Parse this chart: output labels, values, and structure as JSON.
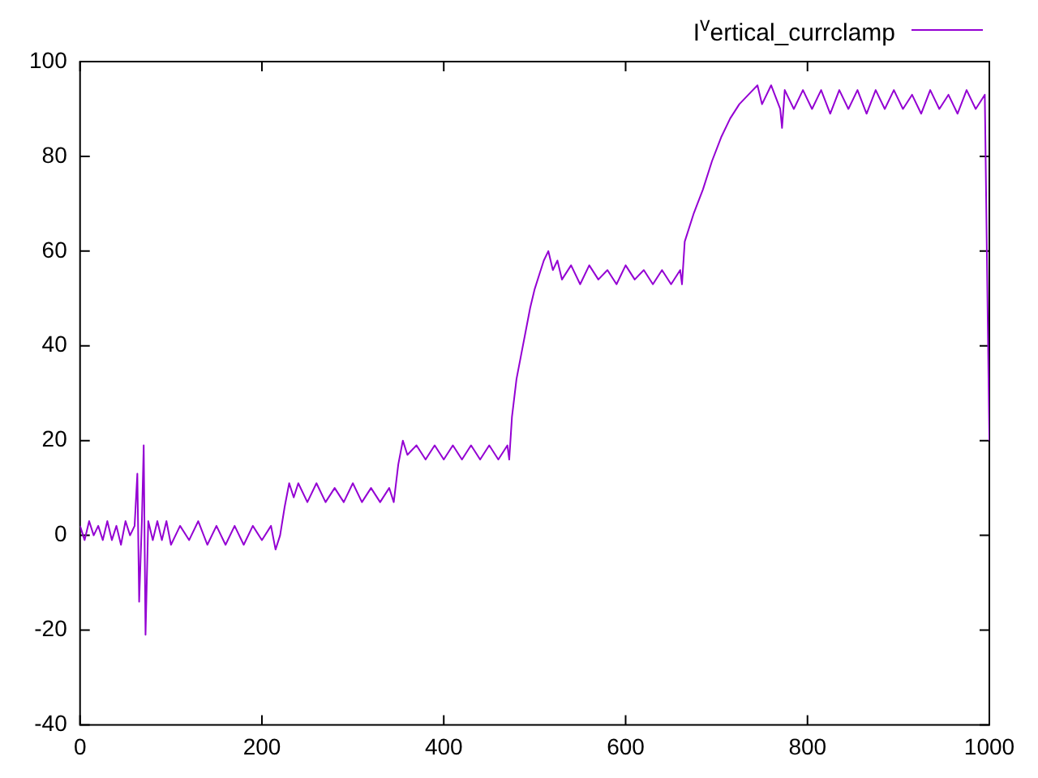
{
  "chart_data": {
    "type": "line",
    "x": [
      0,
      5,
      10,
      15,
      20,
      25,
      30,
      35,
      40,
      45,
      50,
      55,
      60,
      63,
      65,
      68,
      70,
      72,
      75,
      80,
      85,
      90,
      95,
      100,
      110,
      120,
      130,
      140,
      150,
      160,
      170,
      180,
      190,
      200,
      210,
      215,
      220,
      225,
      230,
      235,
      240,
      250,
      260,
      270,
      280,
      290,
      300,
      310,
      320,
      330,
      340,
      345,
      350,
      355,
      360,
      370,
      380,
      390,
      400,
      410,
      420,
      430,
      440,
      450,
      460,
      470,
      472,
      475,
      480,
      485,
      490,
      495,
      500,
      505,
      510,
      515,
      520,
      525,
      530,
      540,
      550,
      560,
      570,
      580,
      590,
      600,
      610,
      620,
      630,
      640,
      650,
      660,
      662,
      665,
      675,
      685,
      695,
      705,
      715,
      725,
      735,
      745,
      750,
      760,
      770,
      772,
      775,
      785,
      795,
      805,
      815,
      825,
      835,
      845,
      855,
      865,
      875,
      885,
      895,
      905,
      915,
      925,
      935,
      945,
      955,
      965,
      975,
      985,
      995,
      1000
    ],
    "series": [
      {
        "name": "I$^{v}$ertical_currclamp",
        "color": "#9400d3",
        "values": [
          2,
          -1,
          3,
          0,
          2,
          -1,
          3,
          -1,
          2,
          -2,
          3,
          0,
          2,
          13,
          -14,
          3,
          19,
          -21,
          3,
          -1,
          3,
          -1,
          3,
          -2,
          2,
          -1,
          3,
          -2,
          2,
          -2,
          2,
          -2,
          2,
          -1,
          2,
          -3,
          0,
          6,
          11,
          8,
          11,
          7,
          11,
          7,
          10,
          7,
          11,
          7,
          10,
          7,
          10,
          7,
          15,
          20,
          17,
          19,
          16,
          19,
          16,
          19,
          16,
          19,
          16,
          19,
          16,
          19,
          16,
          25,
          33,
          38,
          43,
          48,
          52,
          55,
          58,
          60,
          56,
          58,
          54,
          57,
          53,
          57,
          54,
          56,
          53,
          57,
          54,
          56,
          53,
          56,
          53,
          56,
          53,
          62,
          68,
          73,
          79,
          84,
          88,
          91,
          93,
          95,
          91,
          95,
          90,
          86,
          94,
          90,
          94,
          90,
          94,
          89,
          94,
          90,
          94,
          89,
          94,
          90,
          94,
          90,
          93,
          89,
          94,
          90,
          93,
          89,
          94,
          90,
          93,
          20
        ]
      }
    ],
    "xlim": [
      0,
      1000
    ],
    "xticks": [
      0,
      200,
      400,
      600,
      800,
      1000
    ],
    "ylim": [
      -40,
      100
    ],
    "yticks": [
      -40,
      -20,
      0,
      20,
      40,
      60,
      80,
      100
    ],
    "legend": "top right"
  }
}
